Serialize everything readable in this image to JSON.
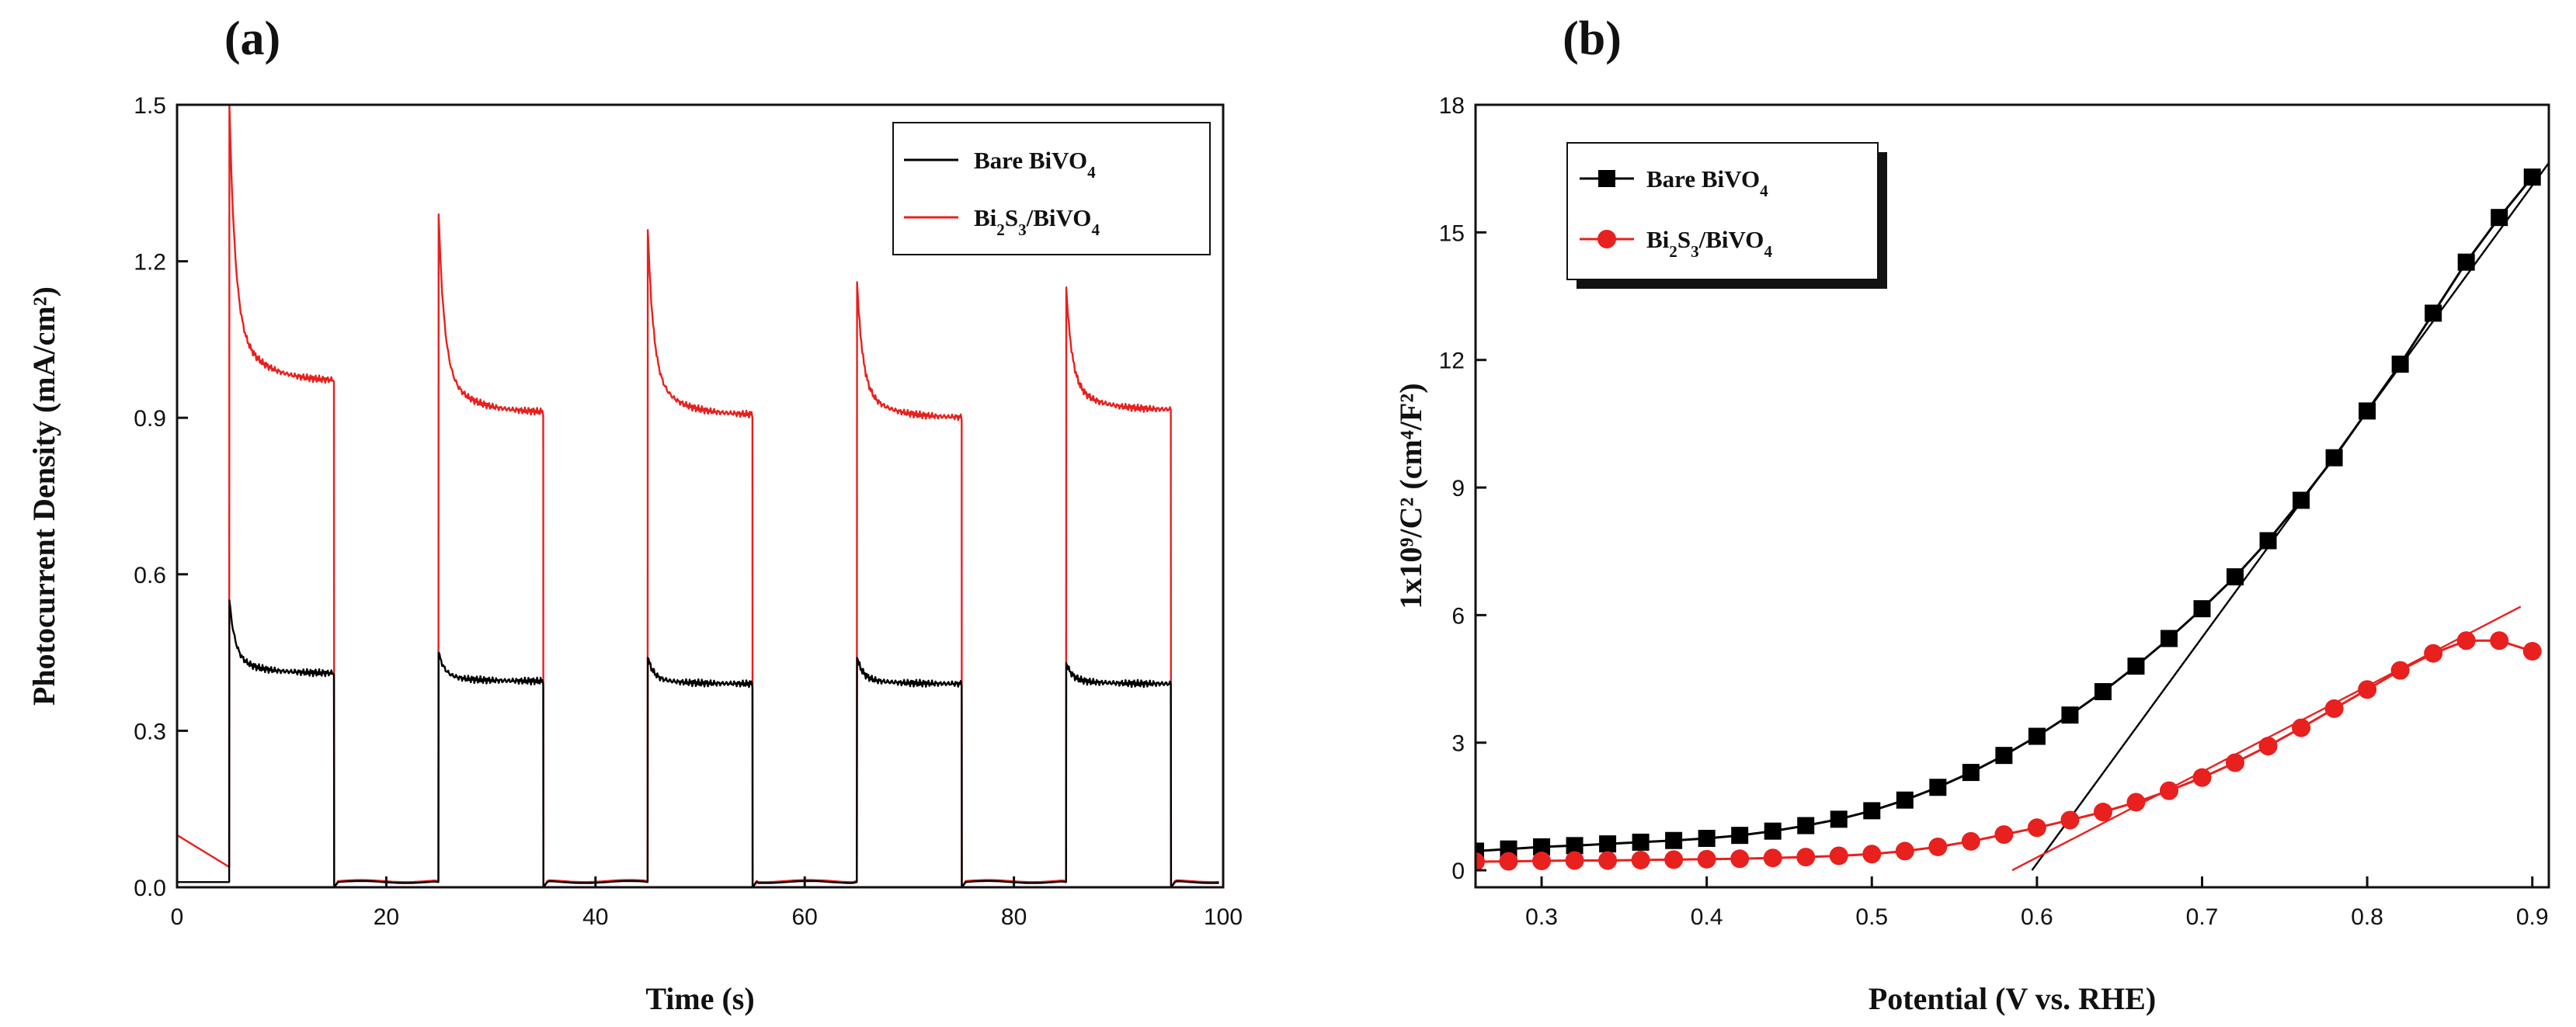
{
  "chart_data": [
    {
      "panel_label": "(a)",
      "type": "line",
      "title": "",
      "xlabel": "Time (s)",
      "ylabel": "Photocurrent Density (mA/cm²)",
      "xlim": [
        0,
        100
      ],
      "ylim": [
        0,
        1.5
      ],
      "x_ticks": [
        0,
        20,
        40,
        60,
        80,
        100
      ],
      "y_ticks": [
        0.0,
        0.3,
        0.6,
        0.9,
        1.2,
        1.5
      ],
      "x_tick_labels": [
        "0",
        "20",
        "40",
        "60",
        "80",
        "100"
      ],
      "y_tick_labels": [
        "0.0",
        "0.3",
        "0.6",
        "0.9",
        "1.2",
        "1.5"
      ],
      "light_on_off_s": [
        [
          5,
          15
        ],
        [
          25,
          35
        ],
        [
          45,
          55
        ],
        [
          65,
          75
        ],
        [
          85,
          95
        ]
      ],
      "legend_position": "top-right",
      "series": [
        {
          "name": "Bare BiVO₄",
          "legend": {
            "base": "Bare BiVO",
            "sub": "4"
          },
          "color": "#000000",
          "dark_current": 0.01,
          "pulses": [
            {
              "on": 5,
              "off": 15,
              "spike": 0.55,
              "steady": 0.41
            },
            {
              "on": 25,
              "off": 35,
              "spike": 0.45,
              "steady": 0.395
            },
            {
              "on": 45,
              "off": 55,
              "spike": 0.44,
              "steady": 0.39
            },
            {
              "on": 65,
              "off": 75,
              "spike": 0.44,
              "steady": 0.39
            },
            {
              "on": 85,
              "off": 95,
              "spike": 0.43,
              "steady": 0.39
            }
          ]
        },
        {
          "name": "Bi₂S₃/BiVO₄",
          "legend": {
            "base": "Bi",
            "sub": "2",
            "base2": "S",
            "sub2": "3",
            "base3": "/BiVO",
            "sub3": "4"
          },
          "color": "#e8201e",
          "dark_current": 0.012,
          "initial_current": 0.1,
          "pulses": [
            {
              "on": 5,
              "off": 15,
              "spike": 1.5,
              "steady": 0.97
            },
            {
              "on": 25,
              "off": 35,
              "spike": 1.29,
              "steady": 0.91
            },
            {
              "on": 45,
              "off": 55,
              "spike": 1.26,
              "steady": 0.905
            },
            {
              "on": 65,
              "off": 75,
              "spike": 1.16,
              "steady": 0.9
            },
            {
              "on": 85,
              "off": 95,
              "spike": 1.15,
              "steady": 0.915
            }
          ]
        }
      ]
    },
    {
      "panel_label": "(b)",
      "type": "scatter",
      "title": "",
      "xlabel": "Potential (V vs. RHE)",
      "ylabel": "1x10⁹/C² (cm⁴/F²)",
      "xlim": [
        0.26,
        0.91
      ],
      "ylim": [
        -0.4,
        18
      ],
      "x_ticks": [
        0.3,
        0.4,
        0.5,
        0.6,
        0.7,
        0.8,
        0.9
      ],
      "y_ticks": [
        0,
        3,
        6,
        9,
        12,
        15,
        18
      ],
      "x_tick_labels": [
        "0.3",
        "0.4",
        "0.5",
        "0.6",
        "0.7",
        "0.8",
        "0.9"
      ],
      "y_tick_labels": [
        "0",
        "3",
        "6",
        "9",
        "12",
        "15",
        "18"
      ],
      "legend_position": "top-left",
      "series": [
        {
          "name": "Bare BiVO₄",
          "legend": {
            "base": "Bare BiVO",
            "sub": "4"
          },
          "color": "#000000",
          "marker": "square",
          "x": [
            0.26,
            0.28,
            0.3,
            0.32,
            0.34,
            0.36,
            0.38,
            0.4,
            0.42,
            0.44,
            0.46,
            0.48,
            0.5,
            0.52,
            0.54,
            0.56,
            0.58,
            0.6,
            0.62,
            0.64,
            0.66,
            0.68,
            0.7,
            0.72,
            0.74,
            0.76,
            0.78,
            0.8,
            0.82,
            0.84,
            0.86,
            0.88,
            0.9
          ],
          "y": [
            0.45,
            0.5,
            0.55,
            0.58,
            0.62,
            0.66,
            0.7,
            0.75,
            0.82,
            0.92,
            1.05,
            1.2,
            1.4,
            1.65,
            1.95,
            2.3,
            2.7,
            3.15,
            3.65,
            4.2,
            4.8,
            5.45,
            6.15,
            6.9,
            7.75,
            8.7,
            9.7,
            10.8,
            11.9,
            13.1,
            14.3,
            15.35,
            16.3
          ],
          "fit_line": {
            "x": [
              0.597,
              0.915
            ],
            "y": [
              0.0,
              16.9
            ]
          }
        },
        {
          "name": "Bi₂S₃/BiVO₄",
          "legend": {
            "base": "Bi",
            "sub": "2",
            "base2": "S",
            "sub2": "3",
            "base3": "/BiVO",
            "sub3": "4"
          },
          "color": "#e8201e",
          "marker": "circle",
          "x": [
            0.26,
            0.28,
            0.3,
            0.32,
            0.34,
            0.36,
            0.38,
            0.4,
            0.42,
            0.44,
            0.46,
            0.48,
            0.5,
            0.52,
            0.54,
            0.56,
            0.58,
            0.6,
            0.62,
            0.64,
            0.66,
            0.68,
            0.7,
            0.72,
            0.74,
            0.76,
            0.78,
            0.8,
            0.82,
            0.84,
            0.86,
            0.88,
            0.9
          ],
          "y": [
            0.2,
            0.21,
            0.22,
            0.23,
            0.23,
            0.24,
            0.25,
            0.26,
            0.27,
            0.29,
            0.31,
            0.34,
            0.38,
            0.45,
            0.55,
            0.68,
            0.84,
            1.0,
            1.18,
            1.37,
            1.6,
            1.87,
            2.18,
            2.53,
            2.92,
            3.35,
            3.8,
            4.25,
            4.7,
            5.1,
            5.4,
            5.4,
            5.15
          ],
          "fit_line": {
            "x": [
              0.585,
              0.893
            ],
            "y": [
              0.0,
              6.2
            ]
          }
        }
      ]
    }
  ]
}
